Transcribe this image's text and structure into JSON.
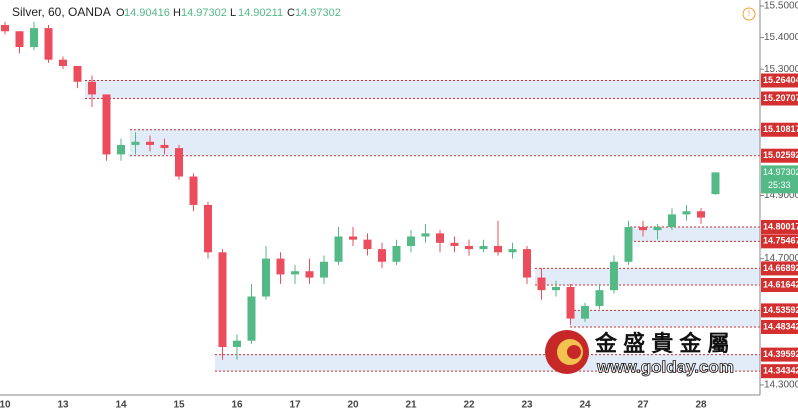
{
  "chart_data": {
    "type": "candlestick",
    "title": "Silver, 60, OANDA",
    "legend": [
      {
        "label": "O",
        "value": 14.90416
      },
      {
        "label": "H",
        "value": 14.97302
      },
      {
        "label": "L",
        "value": 14.90211
      },
      {
        "label": "C",
        "value": 14.97302
      }
    ],
    "categories": [
      "10",
      null,
      null,
      null,
      "13",
      null,
      null,
      null,
      "14",
      null,
      null,
      null,
      "15",
      null,
      null,
      null,
      "16",
      null,
      null,
      null,
      "17",
      null,
      null,
      null,
      "20",
      null,
      null,
      null,
      "21",
      null,
      null,
      null,
      "22",
      null,
      null,
      null,
      "23",
      null,
      null,
      null,
      "24",
      null,
      null,
      null,
      "27",
      null,
      null,
      null,
      "28",
      null
    ],
    "open": [
      15.44,
      15.42,
      15.37,
      15.43,
      15.33,
      15.31,
      15.26,
      15.22,
      15.03,
      15.06,
      15.07,
      15.06,
      15.05,
      14.96,
      14.87,
      14.72,
      14.42,
      14.44,
      14.58,
      14.7,
      14.65,
      14.66,
      14.64,
      14.69,
      14.77,
      14.76,
      14.73,
      14.69,
      14.74,
      14.77,
      14.78,
      14.75,
      14.74,
      14.73,
      14.74,
      14.72,
      14.73,
      14.64,
      14.6,
      14.61,
      14.51,
      14.55,
      14.6,
      14.69,
      14.8,
      14.79,
      14.8,
      14.84,
      14.85,
      14.90416
    ],
    "high": [
      15.45,
      15.42,
      15.45,
      15.44,
      15.34,
      15.31,
      15.28,
      15.22,
      15.08,
      15.1,
      15.09,
      15.08,
      15.06,
      14.97,
      14.88,
      14.73,
      14.46,
      14.62,
      14.74,
      14.72,
      14.68,
      14.7,
      14.71,
      14.8,
      14.8,
      14.78,
      14.75,
      14.76,
      14.79,
      14.81,
      14.79,
      14.77,
      14.76,
      14.76,
      14.82,
      14.75,
      14.74,
      14.67,
      14.63,
      14.62,
      14.56,
      14.62,
      14.71,
      14.82,
      14.82,
      14.81,
      14.86,
      14.87,
      14.86,
      14.97302
    ],
    "low": [
      15.41,
      15.35,
      15.36,
      15.32,
      15.3,
      15.24,
      15.18,
      15.01,
      15.01,
      15.03,
      15.04,
      15.03,
      14.95,
      14.85,
      14.7,
      14.38,
      14.38,
      14.43,
      14.57,
      14.62,
      14.62,
      14.62,
      14.62,
      14.68,
      14.74,
      14.71,
      14.67,
      14.68,
      14.72,
      14.75,
      14.72,
      14.72,
      14.71,
      14.72,
      14.71,
      14.7,
      14.62,
      14.57,
      14.58,
      14.49,
      14.5,
      14.54,
      14.59,
      14.68,
      14.77,
      14.76,
      14.79,
      14.82,
      14.81,
      14.90211
    ],
    "close": [
      15.42,
      15.37,
      15.43,
      15.33,
      15.31,
      15.26,
      15.22,
      15.03,
      15.06,
      15.07,
      15.06,
      15.05,
      14.96,
      14.87,
      14.72,
      14.42,
      14.44,
      14.58,
      14.7,
      14.65,
      14.66,
      14.64,
      14.69,
      14.77,
      14.76,
      14.73,
      14.69,
      14.74,
      14.77,
      14.78,
      14.75,
      14.74,
      14.73,
      14.74,
      14.72,
      14.73,
      14.64,
      14.6,
      14.61,
      14.51,
      14.55,
      14.6,
      14.69,
      14.8,
      14.79,
      14.8,
      14.84,
      14.85,
      14.83,
      14.97302
    ],
    "up_color": "#53b987",
    "down_color": "#eb4d5c",
    "ylim": [
      14.268,
      15.519
    ],
    "yticks": [
      {
        "value": 14.3,
        "label": "14.30000"
      },
      {
        "value": 14.7,
        "label": "14.70000"
      },
      {
        "value": 14.9,
        "label": "14.90000"
      },
      {
        "value": 15.3,
        "label": "15.30000"
      },
      {
        "value": 15.4,
        "label": "15.40000"
      },
      {
        "value": 15.5,
        "label": "15.50000"
      }
    ],
    "levels": [
      {
        "upper": 15.26404,
        "lower": 15.20707
      },
      {
        "upper": 15.10817,
        "lower": 15.02592
      },
      {
        "upper": 14.80017,
        "lower": 14.75467
      },
      {
        "upper": 14.66892,
        "lower": 14.61642
      },
      {
        "upper": 14.53592,
        "lower": 14.48342
      },
      {
        "upper": 14.39592,
        "lower": 14.34342
      }
    ],
    "last_price": 14.97302,
    "countdown": "25:33",
    "watermark": {
      "name": "金 盛 貴 金 屬",
      "url": "www.golday.com"
    }
  }
}
